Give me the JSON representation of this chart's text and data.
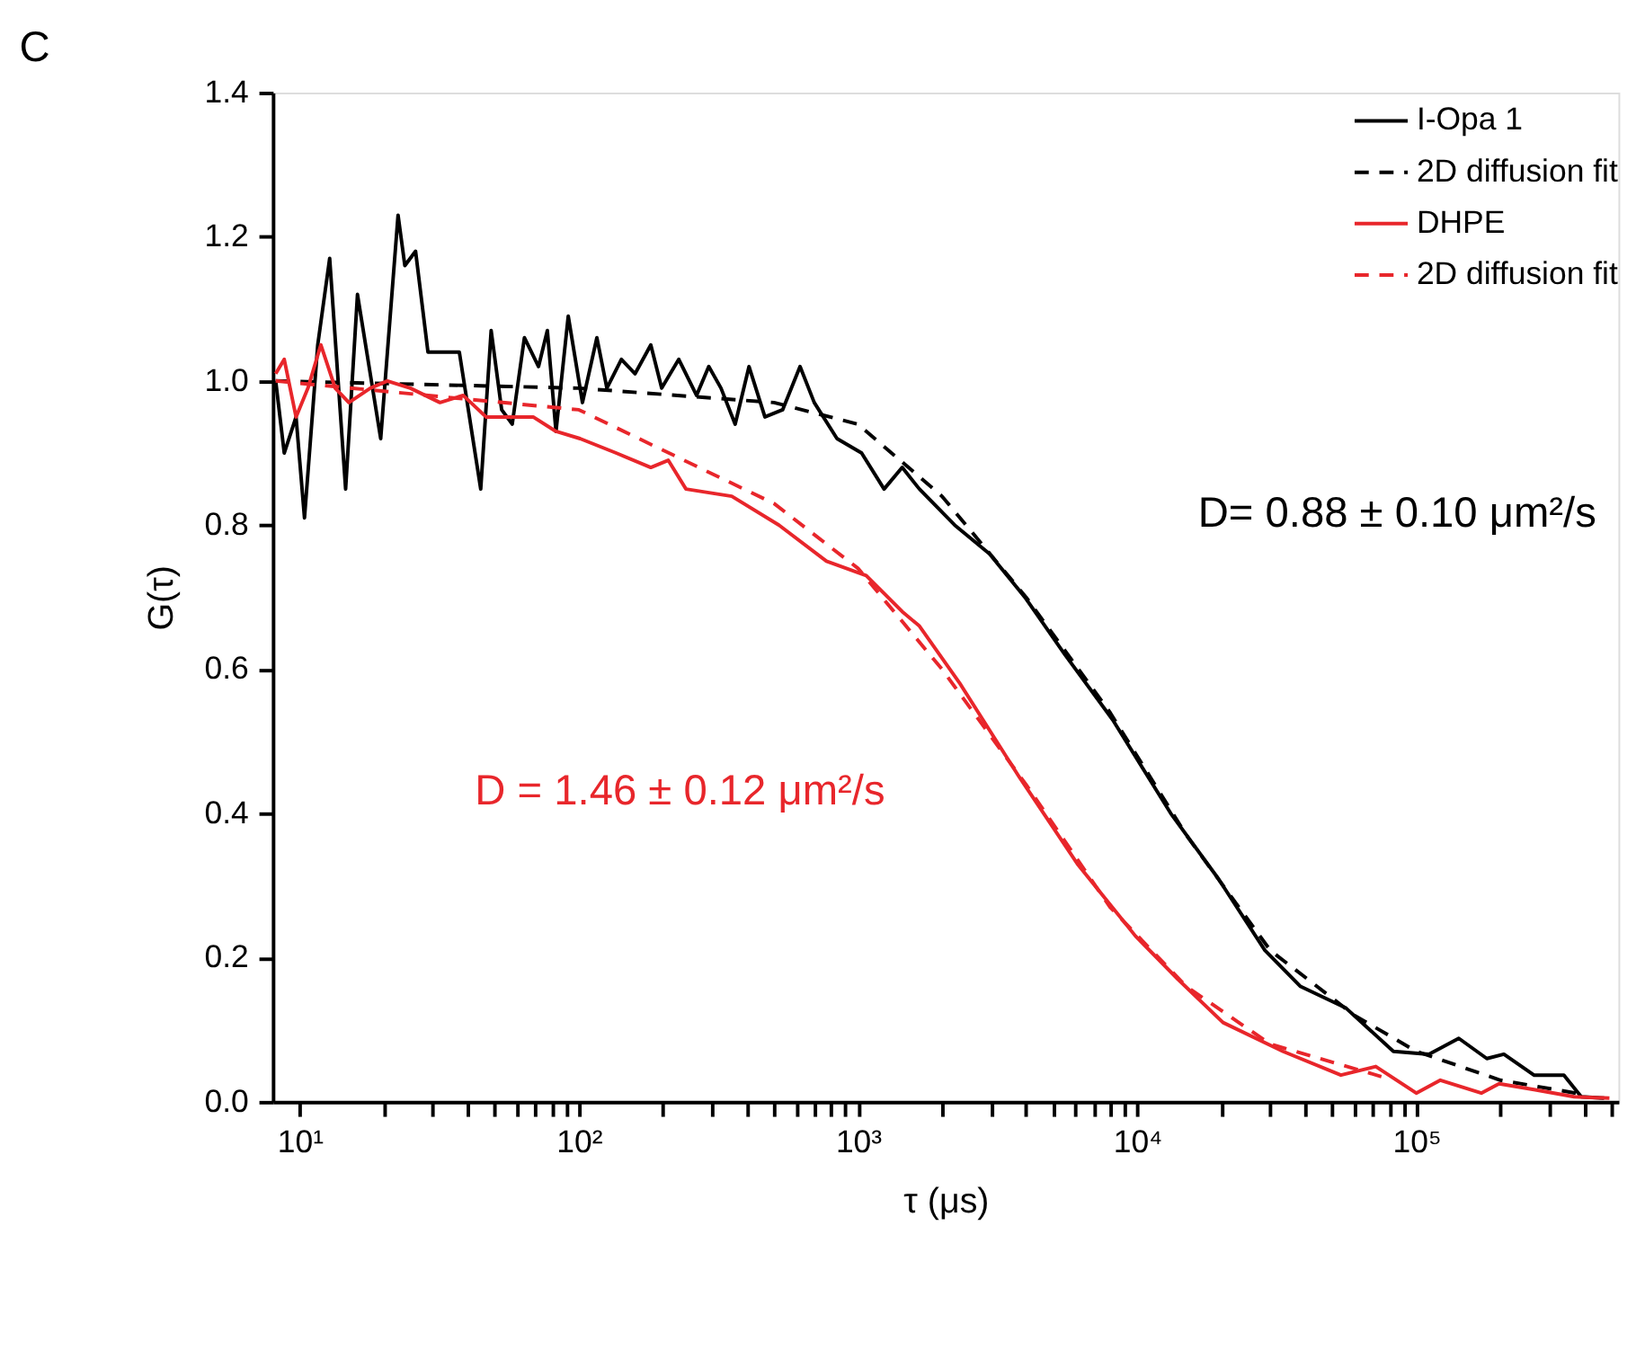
{
  "chart_data": {
    "type": "line",
    "title": "C",
    "xlabel": "τ (μs)",
    "ylabel": "G(τ)",
    "log": "x",
    "grid": false,
    "legend": "top right",
    "xlim": [
      8,
      530000
    ],
    "xticks": [
      {
        "value": 10,
        "label": "10¹"
      },
      {
        "value": 20,
        "label": null
      },
      {
        "value": 30,
        "label": null
      },
      {
        "value": 40,
        "label": null
      },
      {
        "value": 50,
        "label": null
      },
      {
        "value": 60,
        "label": null
      },
      {
        "value": 70,
        "label": null
      },
      {
        "value": 80,
        "label": null
      },
      {
        "value": 90,
        "label": null
      },
      {
        "value": 100,
        "label": "10²"
      },
      {
        "value": 200,
        "label": null
      },
      {
        "value": 300,
        "label": null
      },
      {
        "value": 400,
        "label": null
      },
      {
        "value": 500,
        "label": null
      },
      {
        "value": 600,
        "label": null
      },
      {
        "value": 700,
        "label": null
      },
      {
        "value": 800,
        "label": null
      },
      {
        "value": 900,
        "label": null
      },
      {
        "value": 1000,
        "label": "10³"
      },
      {
        "value": 2000,
        "label": null
      },
      {
        "value": 3000,
        "label": null
      },
      {
        "value": 4000,
        "label": null
      },
      {
        "value": 5000,
        "label": null
      },
      {
        "value": 6000,
        "label": null
      },
      {
        "value": 7000,
        "label": null
      },
      {
        "value": 8000,
        "label": null
      },
      {
        "value": 9000,
        "label": null
      },
      {
        "value": 10000,
        "label": "10⁴"
      },
      {
        "value": 20000,
        "label": null
      },
      {
        "value": 30000,
        "label": null
      },
      {
        "value": 40000,
        "label": null
      },
      {
        "value": 50000,
        "label": null
      },
      {
        "value": 60000,
        "label": null
      },
      {
        "value": 70000,
        "label": null
      },
      {
        "value": 80000,
        "label": null
      },
      {
        "value": 90000,
        "label": null
      },
      {
        "value": 100000,
        "label": "10⁵"
      },
      {
        "value": 200000,
        "label": null
      },
      {
        "value": 300000,
        "label": null
      },
      {
        "value": 400000,
        "label": null
      },
      {
        "value": 500000,
        "label": null
      }
    ],
    "ylim": [
      0,
      1.4
    ],
    "yticks": [
      {
        "value": 0,
        "label": "0.0"
      },
      {
        "value": 0.2,
        "label": "0.2"
      },
      {
        "value": 0.4,
        "label": "0.4"
      },
      {
        "value": 0.6,
        "label": "0.6"
      },
      {
        "value": 0.8,
        "label": "0.8"
      },
      {
        "value": 1.0,
        "label": "1.0"
      },
      {
        "value": 1.2,
        "label": "1.2"
      },
      {
        "value": 1.4,
        "label": "1.4"
      }
    ],
    "series": [
      {
        "name": "I-Opa 1",
        "color": "#000000",
        "line_style": "solid",
        "x": [
          8.2,
          8.8,
          9.7,
          10.4,
          11.6,
          12.8,
          14.6,
          16.1,
          19.5,
          22.5,
          23.8,
          26.0,
          28.8,
          37.3,
          44.5,
          48.5,
          52.9,
          57.7,
          63.8,
          71.7,
          77.1,
          82.8,
          91.6,
          103,
          116,
          126,
          142,
          159,
          181,
          198,
          228,
          264,
          292,
          323,
          363,
          407,
          464,
          537,
          620,
          697,
          841,
          1030,
          1240,
          1440,
          1660,
          2220,
          2960,
          3960,
          5520,
          8170,
          13200,
          19500,
          28700,
          38500,
          56000,
          82800,
          111000,
          142000,
          179000,
          206000,
          264000,
          338000,
          390000,
          471000
        ],
        "values": [
          1.0,
          0.9,
          0.95,
          0.81,
          1.05,
          1.17,
          0.85,
          1.12,
          0.92,
          1.23,
          1.16,
          1.18,
          1.04,
          1.04,
          0.85,
          1.07,
          0.96,
          0.94,
          1.06,
          1.02,
          1.07,
          0.93,
          1.09,
          0.97,
          1.06,
          0.99,
          1.03,
          1.01,
          1.05,
          0.99,
          1.03,
          0.98,
          1.02,
          0.99,
          0.94,
          1.02,
          0.95,
          0.96,
          1.02,
          0.97,
          0.92,
          0.9,
          0.85,
          0.88,
          0.85,
          0.8,
          0.76,
          0.7,
          0.62,
          0.53,
          0.4,
          0.31,
          0.21,
          0.16,
          0.13,
          0.07,
          0.066,
          0.088,
          0.06,
          0.066,
          0.037,
          0.037,
          0.007,
          0.005
        ]
      },
      {
        "name": "2D diffusion fit",
        "color": "#000000",
        "line_style": "dashed",
        "x": [
          8.2,
          100,
          500,
          1000,
          2000,
          4000,
          8000,
          15000,
          30000,
          60000,
          100000,
          200000,
          400000
        ],
        "values": [
          1.0,
          0.99,
          0.97,
          0.94,
          0.84,
          0.7,
          0.54,
          0.37,
          0.21,
          0.12,
          0.07,
          0.03,
          0.01
        ]
      },
      {
        "name": "DHPE",
        "color": "#e8262b",
        "line_style": "solid",
        "x": [
          8.2,
          8.8,
          9.7,
          10.7,
          11.9,
          13.4,
          15.0,
          17.9,
          20.6,
          24.9,
          31.8,
          38.5,
          46.5,
          56.9,
          68.6,
          82.8,
          101,
          136,
          181,
          209,
          242,
          353,
          521,
          771,
          1070,
          1440,
          1660,
          2320,
          3790,
          6110,
          9860,
          14000,
          20300,
          33300,
          53700,
          71600,
          100000,
          122000,
          171000,
          198000,
          264000,
          368000,
          492000
        ],
        "values": [
          1.01,
          1.03,
          0.95,
          0.99,
          1.05,
          0.99,
          0.97,
          0.99,
          1.0,
          0.99,
          0.97,
          0.98,
          0.95,
          0.95,
          0.95,
          0.93,
          0.92,
          0.9,
          0.88,
          0.89,
          0.85,
          0.84,
          0.8,
          0.75,
          0.73,
          0.68,
          0.66,
          0.58,
          0.45,
          0.33,
          0.23,
          0.17,
          0.11,
          0.07,
          0.037,
          0.049,
          0.012,
          0.03,
          0.012,
          0.025,
          0.017,
          0.007,
          0.005
        ]
      },
      {
        "name": "2D diffusion fit",
        "color": "#e8262b",
        "line_style": "dashed",
        "x": [
          8.2,
          100,
          500,
          1000,
          2000,
          4000,
          8000,
          15000,
          30000,
          75000
        ],
        "values": [
          1.0,
          0.96,
          0.83,
          0.74,
          0.6,
          0.44,
          0.27,
          0.16,
          0.08,
          0.035
        ]
      }
    ],
    "annotations": [
      "D= 0.88 ± 0.10 μm²/s",
      "D = 1.46 ± 0.12 μm²/s"
    ]
  }
}
